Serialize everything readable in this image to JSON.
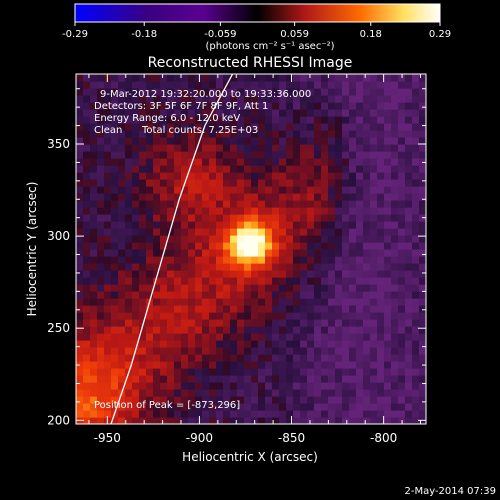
{
  "chart_data": {
    "type": "heatmap",
    "title": "Reconstructed RHESSI Image",
    "colorbar": {
      "ticks": [
        "-0.29",
        "-0.18",
        "-0.059",
        "0.059",
        "0.18",
        "0.29"
      ],
      "min": -0.29,
      "max": 0.29,
      "unit_label": "(photons cm⁻² s⁻¹ asec⁻²)"
    },
    "annotations": {
      "time_range": "9-Mar-2012 19:32:20.000 to 19:33:36.000",
      "detectors": "Detectors: 3F 5F 6F 7F 8F 9F, Att 1",
      "energy_range": "Energy Range: 6.0 - 12.0 keV",
      "clean_label": "Clean",
      "total_counts": "Total counts: 7.25E+03",
      "peak": "Position of Peak = [-873,296]"
    },
    "xlabel": "Heliocentric X (arcsec)",
    "ylabel": "Heliocentric Y (arcsec)",
    "xlim": [
      -967,
      -777
    ],
    "ylim": [
      198,
      388
    ],
    "xticks": [
      -950,
      -900,
      -850,
      -800
    ],
    "yticks": [
      200,
      250,
      300,
      350
    ],
    "peak_position": [
      -873,
      296
    ],
    "limb_curve": [
      [
        -948,
        198
      ],
      [
        -937,
        230
      ],
      [
        -926,
        268
      ],
      [
        -911,
        320
      ],
      [
        -897,
        360
      ],
      [
        -882,
        388
      ]
    ],
    "colors": {
      "background": "#000000",
      "colorbar": [
        "#0000ff",
        "#3a0080",
        "#6a0090",
        "#000000",
        "#b01818",
        "#ff7000",
        "#ffff80",
        "#ffffff"
      ]
    },
    "footer_date": "2-May-2014 07:39"
  }
}
